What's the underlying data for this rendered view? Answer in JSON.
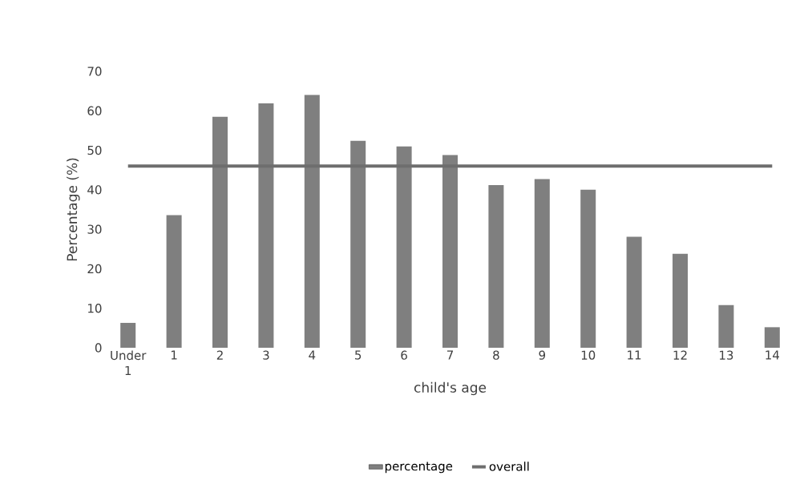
{
  "chart_data": {
    "type": "bar",
    "xlabel": "child's age",
    "ylabel": "Percentage (%)",
    "categories": [
      "Under 1",
      "1",
      "2",
      "3",
      "4",
      "5",
      "6",
      "7",
      "8",
      "9",
      "10",
      "11",
      "12",
      "13",
      "14"
    ],
    "series": [
      {
        "name": "percentage",
        "color": "#7f7f7f",
        "values": [
          6.3,
          33.6,
          58.5,
          61.9,
          64.0,
          52.4,
          51.0,
          48.8,
          41.2,
          42.7,
          40.0,
          28.1,
          23.8,
          10.8,
          5.2
        ]
      },
      {
        "name": "overall",
        "type": "line",
        "color": "#6e6e6e",
        "values": [
          46,
          46,
          46,
          46,
          46,
          46,
          46,
          46,
          46,
          46,
          46,
          46,
          46,
          46,
          46
        ]
      }
    ],
    "ylim": [
      0,
      70
    ],
    "yticks": [
      0,
      10,
      20,
      30,
      40,
      50,
      60,
      70
    ],
    "legend": "bottom"
  }
}
